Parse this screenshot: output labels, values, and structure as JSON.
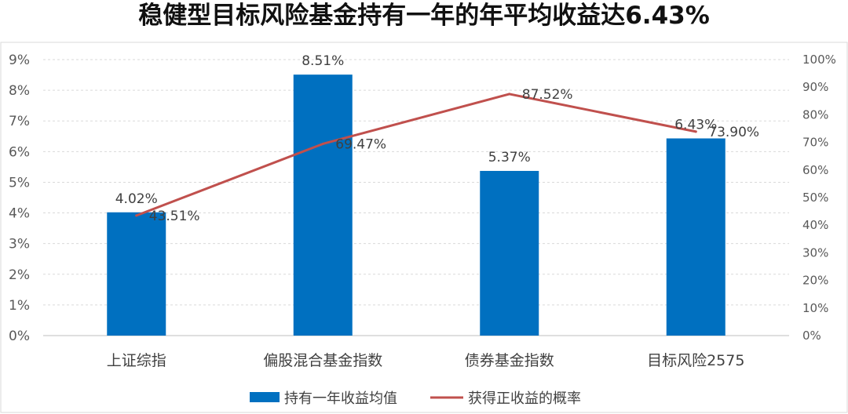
{
  "chart_data": {
    "type": "bar",
    "title": "稳健型目标风险基金持有一年的年平均收益达6.43%",
    "categories": [
      "上证综指",
      "偏股混合基金指数",
      "债券基金指数",
      "目标风险2575"
    ],
    "series": [
      {
        "name": "持有一年收益均值",
        "type": "bar",
        "axis": "left",
        "values": [
          4.02,
          8.51,
          5.37,
          6.43
        ],
        "labels": [
          "4.02%",
          "8.51%",
          "5.37%",
          "6.43%"
        ],
        "color": "#0070C0"
      },
      {
        "name": "获得正收益的概率",
        "type": "line",
        "axis": "right",
        "values": [
          43.51,
          69.47,
          87.52,
          73.9
        ],
        "labels": [
          "43.51%",
          "69.47%",
          "87.52%",
          "73.90%"
        ],
        "color": "#C0504D"
      }
    ],
    "y_left": {
      "range": [
        0,
        9
      ],
      "ticks": [
        "0%",
        "1%",
        "2%",
        "3%",
        "4%",
        "5%",
        "6%",
        "7%",
        "8%",
        "9%"
      ]
    },
    "y_right": {
      "range": [
        0,
        100
      ],
      "ticks": [
        "0%",
        "10%",
        "20%",
        "30%",
        "40%",
        "50%",
        "60%",
        "70%",
        "80%",
        "90%",
        "100%"
      ]
    },
    "grid": true,
    "legend": "bottom"
  }
}
